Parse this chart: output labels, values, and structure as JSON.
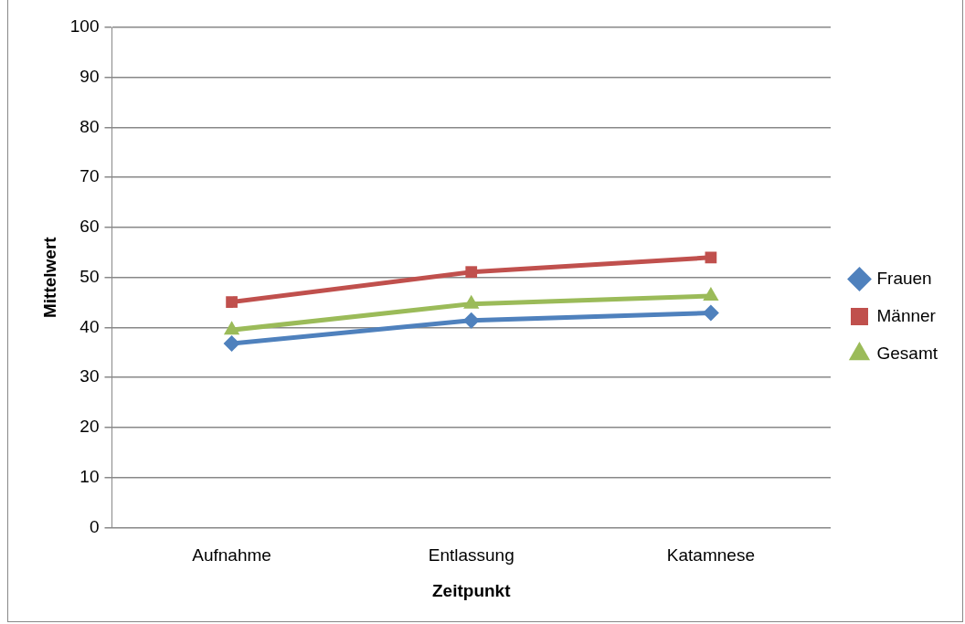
{
  "chart_data": {
    "type": "line",
    "xlabel": "Zeitpunkt",
    "ylabel": "Mittelwert",
    "categories": [
      "Aufnahme",
      "Entlassung",
      "Katamnese"
    ],
    "series": [
      {
        "name": "Frauen",
        "color": "#4f81bd",
        "marker": "diamond",
        "values": [
          36.8,
          41.4,
          42.9
        ]
      },
      {
        "name": "Männer",
        "color": "#c0504d",
        "marker": "square",
        "values": [
          45.1,
          51.1,
          54
        ]
      },
      {
        "name": "Gesamt",
        "color": "#9bbb59",
        "marker": "triangle",
        "values": [
          39.5,
          44.7,
          46.3
        ]
      }
    ],
    "ylim": [
      0,
      100
    ],
    "yticks": [
      0,
      10,
      20,
      30,
      40,
      50,
      60,
      70,
      80,
      90,
      100
    ],
    "grid": "y",
    "legend": "right"
  }
}
